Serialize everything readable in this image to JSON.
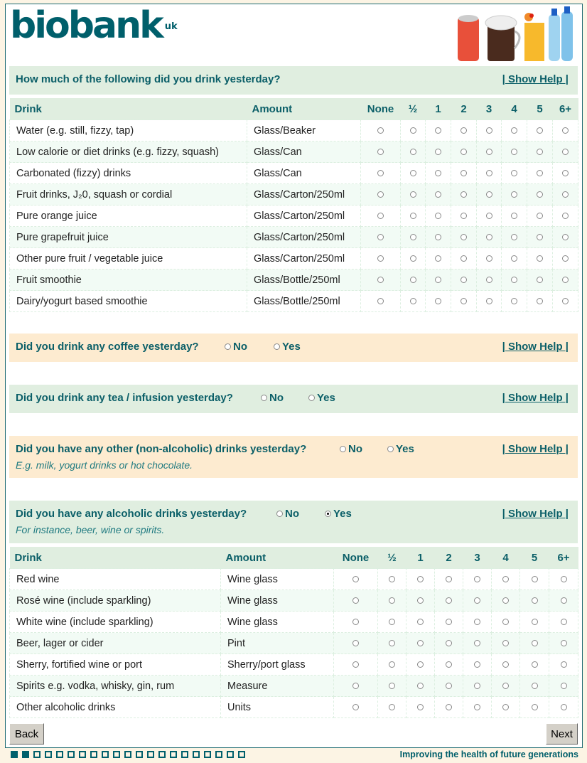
{
  "brand": {
    "logo_text": "biobank",
    "logo_sup": "uk",
    "tagline": "Improving the health of future generations",
    "text_color": "#005f6b"
  },
  "show_help": "| Show Help |",
  "q1": {
    "question": "How much of the following did you drink yesterday?"
  },
  "table1": {
    "headers": [
      "Drink",
      "Amount",
      "None",
      "½",
      "1",
      "2",
      "3",
      "4",
      "5",
      "6+"
    ],
    "rows": [
      {
        "drink": "Water (e.g. still, fizzy, tap)",
        "amount": "Glass/Beaker"
      },
      {
        "drink": "Low calorie or diet drinks (e.g. fizzy, squash)",
        "amount": "Glass/Can"
      },
      {
        "drink": "Carbonated (fizzy) drinks",
        "amount": "Glass/Can"
      },
      {
        "drink": "Fruit drinks, J₂0, squash or cordial",
        "amount": "Glass/Carton/250ml"
      },
      {
        "drink": "Pure orange juice",
        "amount": "Glass/Carton/250ml"
      },
      {
        "drink": "Pure grapefruit juice",
        "amount": "Glass/Carton/250ml"
      },
      {
        "drink": "Other pure fruit / vegetable juice",
        "amount": "Glass/Carton/250ml"
      },
      {
        "drink": "Fruit smoothie",
        "amount": "Glass/Bottle/250ml"
      },
      {
        "drink": "Dairy/yogurt based smoothie",
        "amount": "Glass/Bottle/250ml"
      }
    ]
  },
  "coffee": {
    "question": "Did you drink any coffee yesterday?",
    "no": "No",
    "yes": "Yes",
    "selected": null
  },
  "tea": {
    "question": "Did you drink any tea / infusion yesterday?",
    "no": "No",
    "yes": "Yes",
    "selected": null
  },
  "other": {
    "question": "Did you have any other (non-alcoholic) drinks yesterday?",
    "hint": "E.g. milk, yogurt drinks or hot chocolate.",
    "no": "No",
    "yes": "Yes",
    "selected": null
  },
  "alcohol": {
    "question": "Did you have any alcoholic drinks yesterday?",
    "hint": "For instance, beer, wine or spirits.",
    "no": "No",
    "yes": "Yes",
    "selected": "Yes"
  },
  "table2": {
    "headers": [
      "Drink",
      "Amount",
      "None",
      "½",
      "1",
      "2",
      "3",
      "4",
      "5",
      "6+"
    ],
    "rows": [
      {
        "drink": "Red wine",
        "amount": "Wine glass"
      },
      {
        "drink": "Rosé wine (include sparkling)",
        "amount": "Wine glass"
      },
      {
        "drink": "White wine (include sparkling)",
        "amount": "Wine glass"
      },
      {
        "drink": "Beer, lager or cider",
        "amount": "Pint"
      },
      {
        "drink": "Sherry, fortified wine or port",
        "amount": "Sherry/port glass"
      },
      {
        "drink": "Spirits e.g. vodka, whisky, gin, rum",
        "amount": "Measure"
      },
      {
        "drink": "Other alcoholic drinks",
        "amount": "Units"
      }
    ]
  },
  "nav": {
    "back": "Back",
    "next": "Next"
  },
  "progress": {
    "completed": 2,
    "total": 21
  }
}
